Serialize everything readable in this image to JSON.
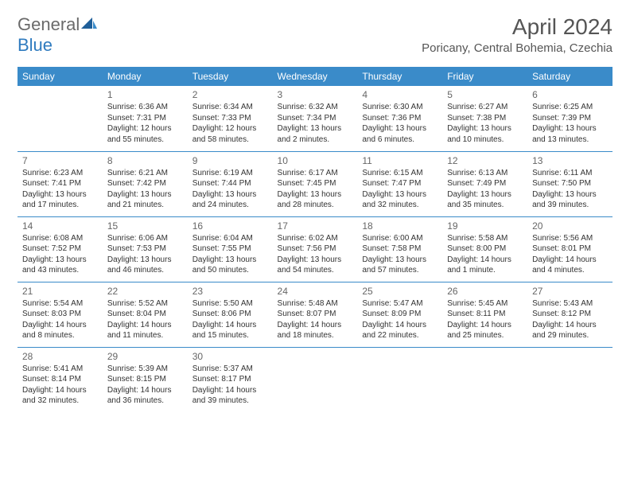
{
  "logo": {
    "word1": "General",
    "word2": "Blue"
  },
  "title": "April 2024",
  "location": "Poricany, Central Bohemia, Czechia",
  "colors": {
    "header_bg": "#3a8bc9",
    "header_text": "#ffffff",
    "rule": "#3a8bc9",
    "logo_gray": "#6a6a6a",
    "logo_blue": "#2f7bbf"
  },
  "day_headers": [
    "Sunday",
    "Monday",
    "Tuesday",
    "Wednesday",
    "Thursday",
    "Friday",
    "Saturday"
  ],
  "weeks": [
    [
      null,
      {
        "n": "1",
        "sr": "Sunrise: 6:36 AM",
        "ss": "Sunset: 7:31 PM",
        "d1": "Daylight: 12 hours",
        "d2": "and 55 minutes."
      },
      {
        "n": "2",
        "sr": "Sunrise: 6:34 AM",
        "ss": "Sunset: 7:33 PM",
        "d1": "Daylight: 12 hours",
        "d2": "and 58 minutes."
      },
      {
        "n": "3",
        "sr": "Sunrise: 6:32 AM",
        "ss": "Sunset: 7:34 PM",
        "d1": "Daylight: 13 hours",
        "d2": "and 2 minutes."
      },
      {
        "n": "4",
        "sr": "Sunrise: 6:30 AM",
        "ss": "Sunset: 7:36 PM",
        "d1": "Daylight: 13 hours",
        "d2": "and 6 minutes."
      },
      {
        "n": "5",
        "sr": "Sunrise: 6:27 AM",
        "ss": "Sunset: 7:38 PM",
        "d1": "Daylight: 13 hours",
        "d2": "and 10 minutes."
      },
      {
        "n": "6",
        "sr": "Sunrise: 6:25 AM",
        "ss": "Sunset: 7:39 PM",
        "d1": "Daylight: 13 hours",
        "d2": "and 13 minutes."
      }
    ],
    [
      {
        "n": "7",
        "sr": "Sunrise: 6:23 AM",
        "ss": "Sunset: 7:41 PM",
        "d1": "Daylight: 13 hours",
        "d2": "and 17 minutes."
      },
      {
        "n": "8",
        "sr": "Sunrise: 6:21 AM",
        "ss": "Sunset: 7:42 PM",
        "d1": "Daylight: 13 hours",
        "d2": "and 21 minutes."
      },
      {
        "n": "9",
        "sr": "Sunrise: 6:19 AM",
        "ss": "Sunset: 7:44 PM",
        "d1": "Daylight: 13 hours",
        "d2": "and 24 minutes."
      },
      {
        "n": "10",
        "sr": "Sunrise: 6:17 AM",
        "ss": "Sunset: 7:45 PM",
        "d1": "Daylight: 13 hours",
        "d2": "and 28 minutes."
      },
      {
        "n": "11",
        "sr": "Sunrise: 6:15 AM",
        "ss": "Sunset: 7:47 PM",
        "d1": "Daylight: 13 hours",
        "d2": "and 32 minutes."
      },
      {
        "n": "12",
        "sr": "Sunrise: 6:13 AM",
        "ss": "Sunset: 7:49 PM",
        "d1": "Daylight: 13 hours",
        "d2": "and 35 minutes."
      },
      {
        "n": "13",
        "sr": "Sunrise: 6:11 AM",
        "ss": "Sunset: 7:50 PM",
        "d1": "Daylight: 13 hours",
        "d2": "and 39 minutes."
      }
    ],
    [
      {
        "n": "14",
        "sr": "Sunrise: 6:08 AM",
        "ss": "Sunset: 7:52 PM",
        "d1": "Daylight: 13 hours",
        "d2": "and 43 minutes."
      },
      {
        "n": "15",
        "sr": "Sunrise: 6:06 AM",
        "ss": "Sunset: 7:53 PM",
        "d1": "Daylight: 13 hours",
        "d2": "and 46 minutes."
      },
      {
        "n": "16",
        "sr": "Sunrise: 6:04 AM",
        "ss": "Sunset: 7:55 PM",
        "d1": "Daylight: 13 hours",
        "d2": "and 50 minutes."
      },
      {
        "n": "17",
        "sr": "Sunrise: 6:02 AM",
        "ss": "Sunset: 7:56 PM",
        "d1": "Daylight: 13 hours",
        "d2": "and 54 minutes."
      },
      {
        "n": "18",
        "sr": "Sunrise: 6:00 AM",
        "ss": "Sunset: 7:58 PM",
        "d1": "Daylight: 13 hours",
        "d2": "and 57 minutes."
      },
      {
        "n": "19",
        "sr": "Sunrise: 5:58 AM",
        "ss": "Sunset: 8:00 PM",
        "d1": "Daylight: 14 hours",
        "d2": "and 1 minute."
      },
      {
        "n": "20",
        "sr": "Sunrise: 5:56 AM",
        "ss": "Sunset: 8:01 PM",
        "d1": "Daylight: 14 hours",
        "d2": "and 4 minutes."
      }
    ],
    [
      {
        "n": "21",
        "sr": "Sunrise: 5:54 AM",
        "ss": "Sunset: 8:03 PM",
        "d1": "Daylight: 14 hours",
        "d2": "and 8 minutes."
      },
      {
        "n": "22",
        "sr": "Sunrise: 5:52 AM",
        "ss": "Sunset: 8:04 PM",
        "d1": "Daylight: 14 hours",
        "d2": "and 11 minutes."
      },
      {
        "n": "23",
        "sr": "Sunrise: 5:50 AM",
        "ss": "Sunset: 8:06 PM",
        "d1": "Daylight: 14 hours",
        "d2": "and 15 minutes."
      },
      {
        "n": "24",
        "sr": "Sunrise: 5:48 AM",
        "ss": "Sunset: 8:07 PM",
        "d1": "Daylight: 14 hours",
        "d2": "and 18 minutes."
      },
      {
        "n": "25",
        "sr": "Sunrise: 5:47 AM",
        "ss": "Sunset: 8:09 PM",
        "d1": "Daylight: 14 hours",
        "d2": "and 22 minutes."
      },
      {
        "n": "26",
        "sr": "Sunrise: 5:45 AM",
        "ss": "Sunset: 8:11 PM",
        "d1": "Daylight: 14 hours",
        "d2": "and 25 minutes."
      },
      {
        "n": "27",
        "sr": "Sunrise: 5:43 AM",
        "ss": "Sunset: 8:12 PM",
        "d1": "Daylight: 14 hours",
        "d2": "and 29 minutes."
      }
    ],
    [
      {
        "n": "28",
        "sr": "Sunrise: 5:41 AM",
        "ss": "Sunset: 8:14 PM",
        "d1": "Daylight: 14 hours",
        "d2": "and 32 minutes."
      },
      {
        "n": "29",
        "sr": "Sunrise: 5:39 AM",
        "ss": "Sunset: 8:15 PM",
        "d1": "Daylight: 14 hours",
        "d2": "and 36 minutes."
      },
      {
        "n": "30",
        "sr": "Sunrise: 5:37 AM",
        "ss": "Sunset: 8:17 PM",
        "d1": "Daylight: 14 hours",
        "d2": "and 39 minutes."
      },
      null,
      null,
      null,
      null
    ]
  ]
}
